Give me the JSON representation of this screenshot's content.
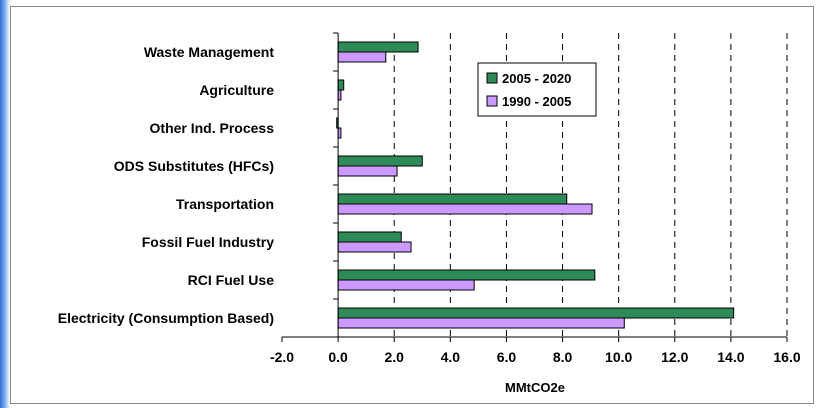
{
  "chart_data": {
    "type": "bar",
    "orientation": "horizontal",
    "categories": [
      "Waste Management",
      "Agriculture",
      "Other Ind. Process",
      "ODS Substitutes (HFCs)",
      "Transportation",
      "Fossil Fuel Industry",
      "RCI Fuel Use",
      "Electricity (Consumption Based)"
    ],
    "series": [
      {
        "name": "2005 - 2020",
        "color": "#2e8b57",
        "values": [
          2.85,
          0.2,
          -0.05,
          3.0,
          8.15,
          2.25,
          9.15,
          14.1
        ]
      },
      {
        "name": "1990 - 2005",
        "color": "#cc99ff",
        "values": [
          1.7,
          0.1,
          0.1,
          2.1,
          9.05,
          2.6,
          4.85,
          10.2
        ]
      }
    ],
    "xlabel": "MMtCO2e",
    "xlim": [
      -2.0,
      16.0
    ],
    "xticks": [
      "-2.0",
      "0.0",
      "2.0",
      "4.0",
      "6.0",
      "8.0",
      "10.0",
      "12.0",
      "14.0",
      "16.0"
    ],
    "grid": "vertical dashed",
    "legend_position": "top-right"
  }
}
